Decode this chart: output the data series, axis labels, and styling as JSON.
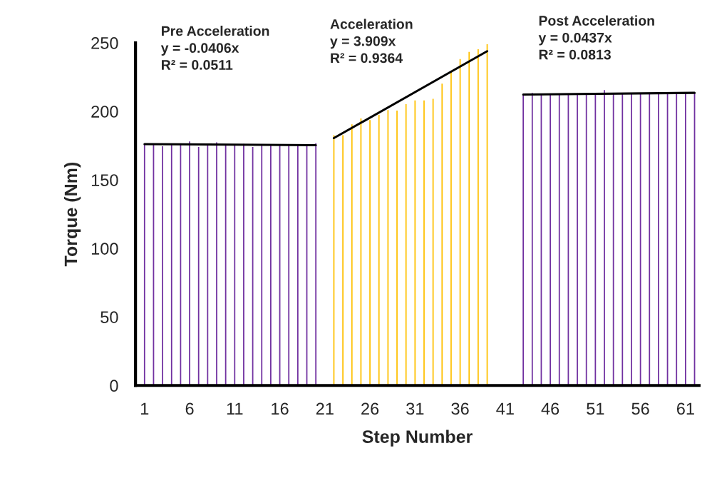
{
  "chart_data": {
    "type": "bar",
    "xlabel": "Step Number",
    "ylabel": "Torque (Nm)",
    "xlim": [
      0,
      62.5
    ],
    "xticks": [
      1,
      6,
      11,
      16,
      21,
      26,
      31,
      36,
      41,
      46,
      51,
      56,
      61
    ],
    "ylim": [
      0,
      250
    ],
    "yticks": [
      0,
      50,
      100,
      150,
      200,
      250
    ],
    "grid": false,
    "legend": false,
    "series": [
      {
        "color": "#7030a0",
        "x": [
          1,
          2,
          3,
          4,
          5,
          6,
          7,
          8,
          9,
          10,
          11,
          12,
          13,
          14,
          15,
          16,
          17,
          18,
          19,
          20
        ],
        "values": [
          176.2,
          176.2,
          174.5,
          176.2,
          176.6,
          178,
          174,
          175.9,
          177.4,
          175.9,
          175.7,
          176.2,
          174,
          175.5,
          175.5,
          175.2,
          175,
          175,
          175,
          176.7
        ]
      },
      {
        "color": "#ffc000",
        "x": [
          22,
          23,
          24,
          25,
          26,
          27,
          28,
          29,
          30,
          31,
          32,
          33,
          34,
          35,
          36,
          37,
          38,
          39
        ],
        "values": [
          182.6,
          182.6,
          190.6,
          194.8,
          193.6,
          197.4,
          201,
          200.5,
          205.2,
          208,
          208,
          209.2,
          220.2,
          229.2,
          238.2,
          243.4,
          245.3,
          249
        ]
      },
      {
        "color": "#7030a0",
        "x": [
          43,
          44,
          45,
          46,
          47,
          48,
          49,
          50,
          51,
          52,
          53,
          54,
          55,
          56,
          57,
          58,
          59,
          60,
          61,
          62
        ],
        "values": [
          212.3,
          213.5,
          212.4,
          212.4,
          212.5,
          212.5,
          212.6,
          212.6,
          213.5,
          215.5,
          212.7,
          212.8,
          212.8,
          212.9,
          213,
          213,
          213,
          213.6,
          213.2,
          213.2
        ]
      },
      {
        "type": "line",
        "color": "#000000",
        "x": [
          1,
          20
        ],
        "values": [
          176.1,
          175.3
        ]
      },
      {
        "type": "line",
        "color": "#000000",
        "x": [
          22,
          39
        ],
        "values": [
          180.5,
          243.9
        ]
      },
      {
        "type": "line",
        "color": "#000000",
        "x": [
          43,
          62
        ],
        "values": [
          212.3,
          213.5
        ]
      }
    ],
    "annotations": [
      "Pre Acceleration\ny = -0.0406x\nR² = 0.0511",
      "Acceleration\ny = 3.909x\nR² = 0.9364",
      "Post Acceleration\ny = 0.0437x\nR² = 0.0813"
    ]
  }
}
